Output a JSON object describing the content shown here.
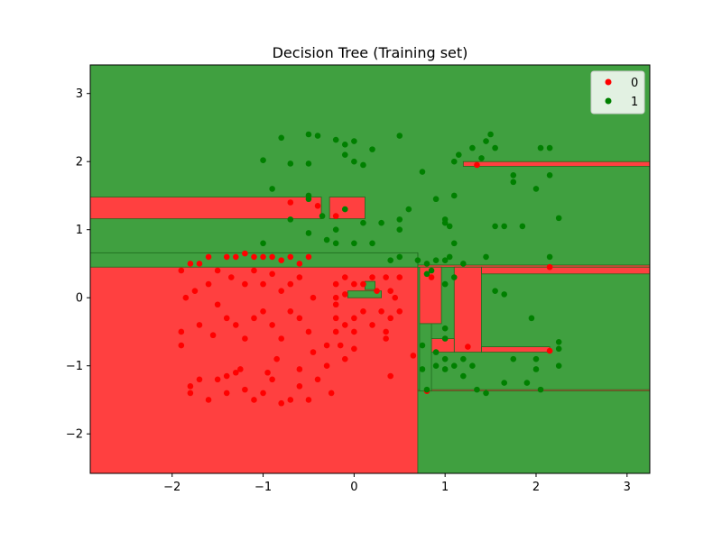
{
  "chart_data": {
    "type": "scatter",
    "title": "Decision Tree (Training set)",
    "xlabel": "",
    "ylabel": "",
    "xlim": [
      -2.9,
      3.25
    ],
    "ylim": [
      -2.58,
      3.42
    ],
    "xticks": [
      -2,
      -1,
      0,
      1,
      2,
      3
    ],
    "xtick_labels": [
      "−2",
      "−1",
      "0",
      "1",
      "2",
      "3"
    ],
    "yticks": [
      -2,
      -1,
      0,
      1,
      2,
      3
    ],
    "ytick_labels": [
      "−2",
      "−1",
      "0",
      "1",
      "2",
      "3"
    ],
    "grid": false,
    "legend_position": "top-right",
    "background_class": "1",
    "colors": {
      "0": "#ff0000",
      "1": "#008000",
      "region_0": "#ff4040",
      "region_1": "#40a040",
      "region_edge": "#1e6b1e"
    },
    "regions": [
      {
        "class": "0",
        "x0": -2.9,
        "x1": 0.7,
        "y0": -2.58,
        "y1": 0.66
      },
      {
        "class": "0",
        "x0": -2.9,
        "x1": -0.36,
        "y0": 1.16,
        "y1": 1.48
      },
      {
        "class": "0",
        "x0": -0.27,
        "x1": 0.12,
        "y0": 1.16,
        "y1": 1.48
      },
      {
        "class": "0",
        "x0": 0.7,
        "x1": 3.25,
        "y0": 0.45,
        "y1": 0.48
      },
      {
        "class": "0",
        "x0": 0.72,
        "x1": 0.96,
        "y0": -0.38,
        "y1": 0.45
      },
      {
        "class": "0",
        "x0": 1.1,
        "x1": 1.4,
        "y0": -0.8,
        "y1": 0.45
      },
      {
        "class": "0",
        "x0": 0.85,
        "x1": 1.1,
        "y0": -0.8,
        "y1": -0.6
      },
      {
        "class": "0",
        "x0": 1.4,
        "x1": 2.15,
        "y0": -0.8,
        "y1": -0.72
      },
      {
        "class": "0",
        "x0": 1.4,
        "x1": 3.25,
        "y0": 0.35,
        "y1": 0.45
      },
      {
        "class": "0",
        "x0": 1.2,
        "x1": 3.25,
        "y0": 1.93,
        "y1": 2.0
      },
      {
        "class": "0",
        "x0": 0.7,
        "x1": 3.25,
        "y0": -1.37,
        "y1": -1.35
      },
      {
        "class": "1",
        "x0": -2.9,
        "x1": 0.7,
        "y0": 0.45,
        "y1": 0.66
      },
      {
        "class": "1",
        "x0": -0.07,
        "x1": 0.3,
        "y0": 0.0,
        "y1": 0.1
      },
      {
        "class": "1",
        "x0": 0.12,
        "x1": 0.23,
        "y0": 0.12,
        "y1": 0.24
      },
      {
        "class": "1",
        "x0": 0.72,
        "x1": 0.85,
        "y0": -1.37,
        "y1": -0.38
      }
    ],
    "series": [
      {
        "name": "0",
        "points": [
          [
            -1.9,
            0.4
          ],
          [
            -1.8,
            0.5
          ],
          [
            -1.7,
            0.5
          ],
          [
            -1.6,
            0.6
          ],
          [
            -1.5,
            0.4
          ],
          [
            -1.4,
            0.6
          ],
          [
            -1.3,
            0.6
          ],
          [
            -1.2,
            0.65
          ],
          [
            -1.1,
            0.6
          ],
          [
            -1.0,
            0.6
          ],
          [
            -0.9,
            0.6
          ],
          [
            -0.8,
            0.55
          ],
          [
            -0.7,
            0.6
          ],
          [
            -0.6,
            0.5
          ],
          [
            -0.5,
            0.6
          ],
          [
            -1.85,
            0.0
          ],
          [
            -1.75,
            0.1
          ],
          [
            -1.6,
            0.2
          ],
          [
            -1.5,
            -0.1
          ],
          [
            -1.35,
            0.3
          ],
          [
            -1.2,
            0.2
          ],
          [
            -1.1,
            0.4
          ],
          [
            -1.0,
            0.2
          ],
          [
            -0.9,
            0.35
          ],
          [
            -0.8,
            0.1
          ],
          [
            -0.7,
            0.2
          ],
          [
            -0.6,
            0.3
          ],
          [
            -0.45,
            0.0
          ],
          [
            -1.9,
            -0.5
          ],
          [
            -1.9,
            -0.7
          ],
          [
            -1.7,
            -0.4
          ],
          [
            -1.55,
            -0.55
          ],
          [
            -1.4,
            -0.3
          ],
          [
            -1.3,
            -0.4
          ],
          [
            -1.2,
            -0.6
          ],
          [
            -1.1,
            -0.3
          ],
          [
            -1.0,
            -0.2
          ],
          [
            -0.9,
            -0.4
          ],
          [
            -0.8,
            -0.6
          ],
          [
            -0.7,
            -0.2
          ],
          [
            -0.6,
            -0.3
          ],
          [
            -0.5,
            -0.5
          ],
          [
            -1.8,
            -1.3
          ],
          [
            -1.8,
            -1.4
          ],
          [
            -1.6,
            -1.5
          ],
          [
            -1.5,
            -1.2
          ],
          [
            -1.4,
            -1.4
          ],
          [
            -1.3,
            -1.1
          ],
          [
            -1.2,
            -1.35
          ],
          [
            -1.1,
            -1.5
          ],
          [
            -1.0,
            -1.4
          ],
          [
            -0.9,
            -1.2
          ],
          [
            -0.8,
            -1.55
          ],
          [
            -0.7,
            -1.5
          ],
          [
            -0.6,
            -1.3
          ],
          [
            -0.5,
            -1.5
          ],
          [
            -0.4,
            -1.2
          ],
          [
            -0.3,
            -1.0
          ],
          [
            -0.25,
            -1.4
          ],
          [
            -1.7,
            -1.2
          ],
          [
            -1.4,
            -1.15
          ],
          [
            -1.25,
            -1.05
          ],
          [
            -0.95,
            -1.1
          ],
          [
            -0.85,
            -0.9
          ],
          [
            -0.6,
            -1.05
          ],
          [
            -0.45,
            -0.8
          ],
          [
            -0.3,
            -0.7
          ],
          [
            -0.2,
            -0.1
          ],
          [
            -0.2,
            0.2
          ],
          [
            -0.2,
            -0.3
          ],
          [
            -0.2,
            -0.5
          ],
          [
            -0.1,
            -0.4
          ],
          [
            -0.1,
            -0.9
          ],
          [
            0.0,
            -0.3
          ],
          [
            0.0,
            -0.5
          ],
          [
            0.1,
            -0.2
          ],
          [
            0.2,
            -0.4
          ],
          [
            0.3,
            -0.2
          ],
          [
            0.35,
            -0.5
          ],
          [
            0.4,
            -0.3
          ],
          [
            0.45,
            0.0
          ],
          [
            0.5,
            -0.2
          ],
          [
            -0.1,
            0.3
          ],
          [
            0.0,
            0.2
          ],
          [
            0.1,
            0.2
          ],
          [
            0.2,
            0.3
          ],
          [
            0.25,
            0.1
          ],
          [
            0.35,
            0.3
          ],
          [
            0.4,
            0.1
          ],
          [
            0.5,
            0.3
          ],
          [
            -0.2,
            0.0
          ],
          [
            -0.1,
            0.05
          ],
          [
            0.35,
            -0.6
          ],
          [
            0.0,
            -0.75
          ],
          [
            0.4,
            -1.15
          ],
          [
            -0.15,
            -0.7
          ],
          [
            -0.7,
            1.4
          ],
          [
            -0.4,
            1.35
          ],
          [
            -0.2,
            1.2
          ],
          [
            0.65,
            -0.85
          ],
          [
            0.8,
            -1.37
          ],
          [
            0.85,
            0.3
          ],
          [
            1.25,
            -0.72
          ],
          [
            1.35,
            1.95
          ],
          [
            2.15,
            0.45
          ],
          [
            2.15,
            -0.78
          ]
        ]
      },
      {
        "name": "1",
        "points": [
          [
            -1.0,
            2.02
          ],
          [
            -0.9,
            1.6
          ],
          [
            -0.8,
            2.35
          ],
          [
            -0.7,
            1.97
          ],
          [
            -0.5,
            1.97
          ],
          [
            -0.5,
            2.4
          ],
          [
            -0.4,
            2.38
          ],
          [
            -0.2,
            2.32
          ],
          [
            -0.1,
            2.25
          ],
          [
            0.0,
            2.3
          ],
          [
            0.2,
            2.18
          ],
          [
            0.5,
            2.38
          ],
          [
            -0.1,
            2.1
          ],
          [
            -0.7,
            1.15
          ],
          [
            -0.5,
            1.5
          ],
          [
            -0.5,
            1.45
          ],
          [
            -0.35,
            1.2
          ],
          [
            -0.1,
            1.3
          ],
          [
            -0.2,
            1.0
          ],
          [
            0.0,
            2.0
          ],
          [
            0.1,
            1.95
          ],
          [
            0.1,
            1.1
          ],
          [
            0.3,
            1.1
          ],
          [
            0.5,
            1.15
          ],
          [
            0.5,
            1.0
          ],
          [
            0.6,
            1.3
          ],
          [
            -1.0,
            0.8
          ],
          [
            -0.5,
            0.95
          ],
          [
            -0.3,
            0.85
          ],
          [
            -0.2,
            0.8
          ],
          [
            0.0,
            0.8
          ],
          [
            0.2,
            0.8
          ],
          [
            0.4,
            0.55
          ],
          [
            0.5,
            0.6
          ],
          [
            0.7,
            0.55
          ],
          [
            0.75,
            1.85
          ],
          [
            0.9,
            1.45
          ],
          [
            1.0,
            1.1
          ],
          [
            1.0,
            1.15
          ],
          [
            1.05,
            1.05
          ],
          [
            1.1,
            1.5
          ],
          [
            1.1,
            2.0
          ],
          [
            1.15,
            2.1
          ],
          [
            1.3,
            2.2
          ],
          [
            1.45,
            2.3
          ],
          [
            1.5,
            2.4
          ],
          [
            1.55,
            2.2
          ],
          [
            1.4,
            2.05
          ],
          [
            1.75,
            1.8
          ],
          [
            1.75,
            1.7
          ],
          [
            2.0,
            1.6
          ],
          [
            2.05,
            2.2
          ],
          [
            2.15,
            2.2
          ],
          [
            2.15,
            1.8
          ],
          [
            0.8,
            0.5
          ],
          [
            0.85,
            0.4
          ],
          [
            0.9,
            0.55
          ],
          [
            1.0,
            0.55
          ],
          [
            1.05,
            0.6
          ],
          [
            1.1,
            0.8
          ],
          [
            1.2,
            0.5
          ],
          [
            1.45,
            0.6
          ],
          [
            1.55,
            1.05
          ],
          [
            1.65,
            1.05
          ],
          [
            1.85,
            1.05
          ],
          [
            2.25,
            1.17
          ],
          [
            2.15,
            0.6
          ],
          [
            0.8,
            0.35
          ],
          [
            1.1,
            0.3
          ],
          [
            1.0,
            0.2
          ],
          [
            0.75,
            -0.7
          ],
          [
            0.75,
            -1.05
          ],
          [
            0.8,
            -1.35
          ],
          [
            0.9,
            -0.8
          ],
          [
            0.9,
            -1.0
          ],
          [
            1.0,
            -0.9
          ],
          [
            1.0,
            -1.05
          ],
          [
            1.1,
            -1.0
          ],
          [
            1.2,
            -0.9
          ],
          [
            1.2,
            -1.15
          ],
          [
            1.3,
            -1.0
          ],
          [
            1.35,
            -1.35
          ],
          [
            1.45,
            -1.4
          ],
          [
            1.55,
            0.1
          ],
          [
            1.65,
            0.05
          ],
          [
            1.65,
            -1.25
          ],
          [
            1.75,
            -0.9
          ],
          [
            1.9,
            -1.25
          ],
          [
            1.95,
            -0.3
          ],
          [
            2.0,
            -0.9
          ],
          [
            2.0,
            -1.05
          ],
          [
            2.05,
            -1.35
          ],
          [
            2.25,
            -0.65
          ],
          [
            2.25,
            -0.75
          ],
          [
            2.25,
            -1.0
          ],
          [
            1.0,
            -0.45
          ],
          [
            1.0,
            -0.6
          ]
        ]
      }
    ]
  }
}
